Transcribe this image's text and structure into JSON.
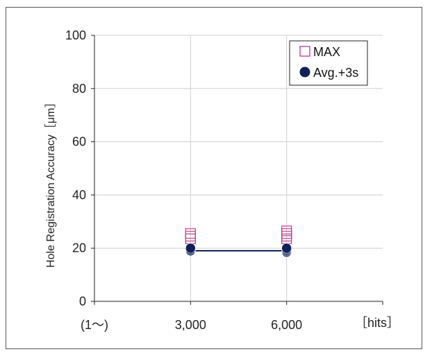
{
  "chart_data": {
    "type": "scatter",
    "title": "",
    "xlabel": "",
    "ylabel": "Hole Registration Accuracy［μm］",
    "x_unit_label": "［hits］",
    "x_first_label": "(1～)",
    "categories": [
      "(1～)",
      "3,000",
      "6,000"
    ],
    "ylim": [
      0,
      100
    ],
    "y_ticks": [
      0,
      20,
      40,
      60,
      80,
      100
    ],
    "y_tick_labels": [
      "0",
      "20",
      "40",
      "60",
      "80",
      "100"
    ],
    "x_ticks": [
      3000,
      6000
    ],
    "x_tick_labels": [
      "3,000",
      "6,000"
    ],
    "grid": true,
    "legend": "top-right",
    "series": [
      {
        "name": "MAX",
        "marker": "open-square",
        "color": "#c0398f",
        "points": [
          {
            "x": 3000,
            "y": 23.5
          },
          {
            "x": 3000,
            "y": 24.5
          },
          {
            "x": 3000,
            "y": 25.5
          },
          {
            "x": 6000,
            "y": 23.5
          },
          {
            "x": 6000,
            "y": 24.5
          },
          {
            "x": 6000,
            "y": 25.5
          },
          {
            "x": 6000,
            "y": 26.5
          }
        ]
      },
      {
        "name": "Avg.+3s",
        "marker": "filled-circle",
        "color": "#10205a",
        "line": true,
        "points": [
          {
            "x": 3000,
            "y": 19
          },
          {
            "x": 3000,
            "y": 19.5
          },
          {
            "x": 3000,
            "y": 20
          },
          {
            "x": 6000,
            "y": 18.5
          },
          {
            "x": 6000,
            "y": 19
          },
          {
            "x": 6000,
            "y": 19.5
          },
          {
            "x": 6000,
            "y": 20
          }
        ],
        "line_points": [
          {
            "x": 3000,
            "y": 19
          },
          {
            "x": 6000,
            "y": 19
          }
        ]
      }
    ]
  }
}
